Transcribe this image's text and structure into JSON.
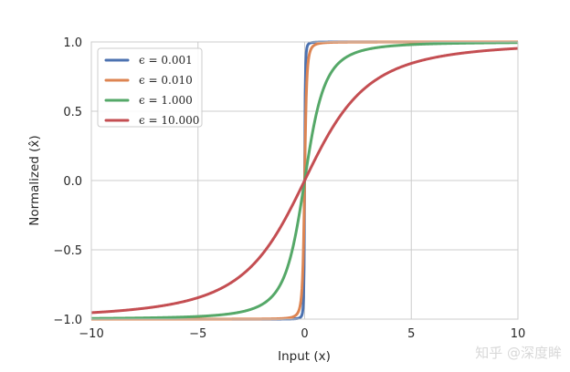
{
  "chart_data": {
    "type": "line",
    "title": "",
    "xlabel": "Input (x)",
    "ylabel": "Normalized (x̂)",
    "xlim": [
      -10,
      10
    ],
    "ylim": [
      -1.0,
      1.0
    ],
    "xticks": [
      "−10",
      "−5",
      "0",
      "5",
      "10"
    ],
    "xtick_values": [
      -10,
      -5,
      0,
      5,
      10
    ],
    "yticks": [
      "−1.0",
      "−0.5",
      "0.0",
      "0.5",
      "1.0"
    ],
    "ytick_values": [
      -1.0,
      -0.5,
      0.0,
      0.5,
      1.0
    ],
    "grid": true,
    "legend_position": "top-left",
    "function": "y = x / sqrt(x^2 + epsilon)",
    "sample_count": 801,
    "series": [
      {
        "name": "ϵ = 0.001",
        "epsilon": 0.001,
        "color": "#4c72b0"
      },
      {
        "name": "ϵ = 0.010",
        "epsilon": 0.01,
        "color": "#dd8452"
      },
      {
        "name": "ϵ = 1.000",
        "epsilon": 1.0,
        "color": "#55a868"
      },
      {
        "name": "ϵ = 10.000",
        "epsilon": 10.0,
        "color": "#c44e52"
      }
    ]
  },
  "watermark": "知乎 @深度眸"
}
